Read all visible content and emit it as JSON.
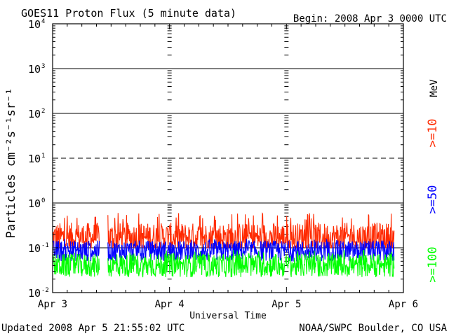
{
  "chart_data": {
    "type": "line",
    "title": "GOES11 Proton Flux (5 minute data)",
    "begin_label": "Begin: 2008 Apr 3 0000 UTC",
    "xlabel": "Universal Time",
    "ylabel": "Particles cm⁻²s⁻¹sr⁻¹",
    "x_ticks": [
      "Apr 3",
      "Apr 4",
      "Apr 5",
      "Apr 6"
    ],
    "xlim_days": [
      0,
      3
    ],
    "y_scale": "log",
    "ylim": [
      0.01,
      10000
    ],
    "y_ticks": [
      {
        "base": "10",
        "exp": "4"
      },
      {
        "base": "10",
        "exp": "3"
      },
      {
        "base": "10",
        "exp": "2"
      },
      {
        "base": "10",
        "exp": "1"
      },
      {
        "base": "10",
        "exp": "0"
      },
      {
        "base": "10",
        "exp": "-1"
      },
      {
        "base": "10",
        "exp": "-2"
      }
    ],
    "threshold_lines": [
      {
        "value": 1000,
        "style": "solid"
      },
      {
        "value": 100,
        "style": "solid"
      },
      {
        "value": 10,
        "style": "dashed"
      },
      {
        "value": 1,
        "style": "solid"
      },
      {
        "value": 0.1,
        "style": "solid"
      }
    ],
    "data_gap_days": [
      0.4,
      0.47
    ],
    "data_end_day": 2.92,
    "unit_label": "MeV",
    "series": [
      {
        "name": ">=10",
        "color": "#ff2a00",
        "typical": 0.17,
        "min": 0.1,
        "max": 0.6
      },
      {
        "name": ">=50",
        "color": "#0000ff",
        "typical": 0.085,
        "min": 0.045,
        "max": 0.16
      },
      {
        "name": ">=100",
        "color": "#00ff00",
        "typical": 0.04,
        "min": 0.022,
        "max": 0.09
      }
    ]
  },
  "footer": {
    "updated": "Updated 2008 Apr  5 21:55:02 UTC",
    "source": "NOAA/SWPC Boulder, CO USA"
  }
}
